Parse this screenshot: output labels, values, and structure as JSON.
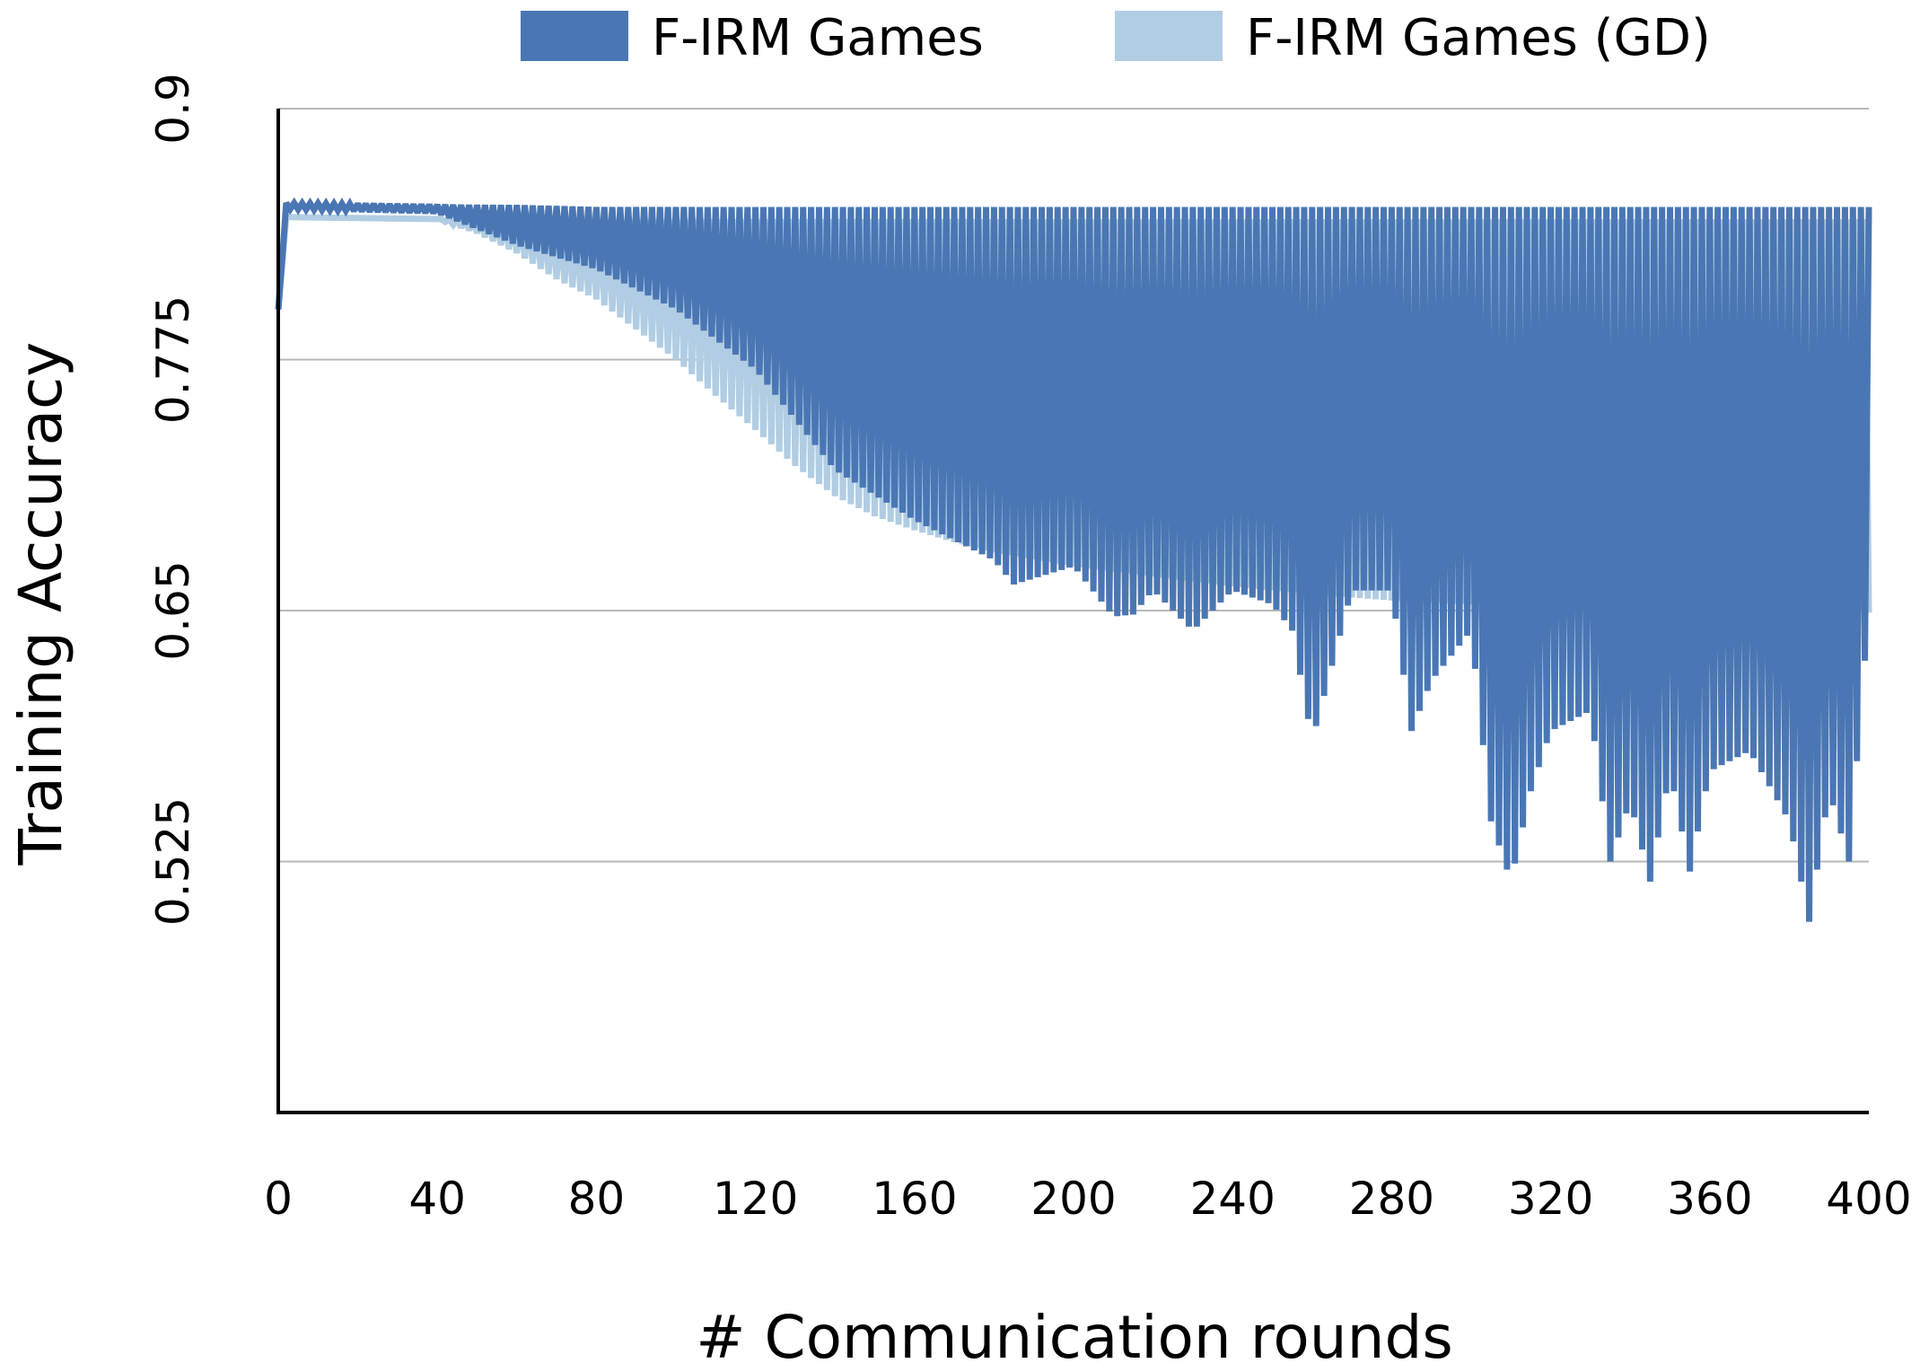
{
  "chart_data": {
    "type": "line",
    "xlabel": "# Communication rounds",
    "ylabel": "Training Accuracy",
    "xlim": [
      0,
      400
    ],
    "ylim": [
      0.4,
      0.9
    ],
    "x_ticks": [
      "0",
      "40",
      "80",
      "120",
      "160",
      "200",
      "240",
      "280",
      "320",
      "360",
      "400"
    ],
    "y_ticks": [
      "0.525",
      "0.65",
      "0.775",
      "0.9"
    ],
    "grid": "horizontal",
    "legend_position": "top",
    "series": [
      {
        "name": "F-IRM Games",
        "color": "#4a77b4",
        "oscillation_period_rounds": 2,
        "upper": {
          "x": [
            0,
            2,
            40,
            60,
            80,
            100,
            200,
            300,
            400
          ],
          "y": [
            0.8,
            0.853,
            0.852,
            0.852,
            0.851,
            0.851,
            0.851,
            0.851,
            0.851
          ]
        },
        "lower": {
          "x": [
            0,
            2,
            40,
            50,
            60,
            80,
            100,
            120,
            140,
            160,
            180,
            185,
            200,
            210,
            215,
            220,
            230,
            240,
            250,
            255,
            260,
            270,
            280,
            285,
            290,
            300,
            305,
            310,
            315,
            320,
            330,
            335,
            340,
            345,
            350,
            355,
            360,
            370,
            380,
            385,
            390,
            395,
            400
          ],
          "y": [
            0.8,
            0.85,
            0.848,
            0.84,
            0.832,
            0.82,
            0.8,
            0.77,
            0.72,
            0.695,
            0.675,
            0.663,
            0.672,
            0.647,
            0.648,
            0.66,
            0.64,
            0.66,
            0.653,
            0.64,
            0.585,
            0.66,
            0.66,
            0.59,
            0.615,
            0.64,
            0.545,
            0.515,
            0.56,
            0.59,
            0.6,
            0.525,
            0.555,
            0.515,
            0.57,
            0.52,
            0.57,
            0.58,
            0.545,
            0.495,
            0.56,
            0.525,
            0.65
          ]
        }
      },
      {
        "name": "F-IRM Games (GD)",
        "color": "#b1cde3",
        "oscillation_period_rounds": 2,
        "upper": {
          "x": [
            0,
            2,
            40,
            60,
            80,
            100,
            200,
            300,
            400
          ],
          "y": [
            0.8,
            0.846,
            0.845,
            0.845,
            0.845,
            0.845,
            0.845,
            0.845,
            0.845
          ]
        },
        "lower": {
          "x": [
            0,
            2,
            40,
            50,
            60,
            70,
            80,
            90,
            100,
            110,
            120,
            130,
            140,
            150,
            160,
            170,
            180,
            200,
            220,
            240,
            260,
            280,
            300,
            320,
            340,
            360,
            380,
            400
          ],
          "y": [
            0.8,
            0.846,
            0.845,
            0.838,
            0.828,
            0.815,
            0.805,
            0.79,
            0.775,
            0.757,
            0.74,
            0.722,
            0.707,
            0.697,
            0.69,
            0.684,
            0.679,
            0.672,
            0.667,
            0.662,
            0.658,
            0.655,
            0.653,
            0.652,
            0.651,
            0.65,
            0.649,
            0.649
          ]
        }
      }
    ]
  }
}
